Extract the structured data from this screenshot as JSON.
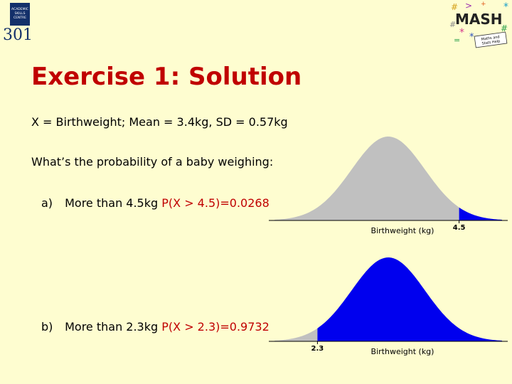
{
  "logo": {
    "box_text": [
      "ACADEMIC",
      "SKILLS",
      "CENTRE"
    ],
    "number": "301"
  },
  "mash_logo": {
    "word": "MASH",
    "tagline": [
      "Maths and",
      "Stats Help"
    ]
  },
  "slide": {
    "title": "Exercise 1: Solution",
    "variable_line": "X = Birthweight; Mean = 3.4kg, SD = 0.57kg",
    "question": "What’s the probability of a baby weighing:",
    "items": [
      {
        "label": "a)",
        "text": "More than 4.5kg",
        "answer": "P(X > 4.5)=0.0268"
      },
      {
        "label": "b)",
        "text": "More than 2.3kg",
        "answer": "P(X > 2.3)=0.9732"
      }
    ]
  },
  "charts": [
    {
      "type": "area",
      "xlabel": "Birthweight (kg)",
      "tick_label": "4.5",
      "mean": 3.4,
      "sd": 0.57,
      "threshold": 4.5,
      "shade": "above",
      "colors": {
        "unshaded": "#c0c0c0",
        "shaded": "#0000ee"
      }
    },
    {
      "type": "area",
      "xlabel": "Birthweight (kg)",
      "tick_label": "2.3",
      "mean": 3.4,
      "sd": 0.57,
      "threshold": 2.3,
      "shade": "above",
      "colors": {
        "unshaded": "#c0c0c0",
        "shaded": "#0000ee"
      }
    }
  ]
}
